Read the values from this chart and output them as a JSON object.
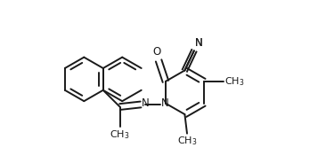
{
  "background": "#ffffff",
  "line_color": "#1a1a1a",
  "line_width": 1.4,
  "font_size": 8.5,
  "fig_width": 3.66,
  "fig_height": 1.84,
  "xlim": [
    -0.05,
    1.0
  ],
  "ylim": [
    -0.18,
    0.52
  ]
}
